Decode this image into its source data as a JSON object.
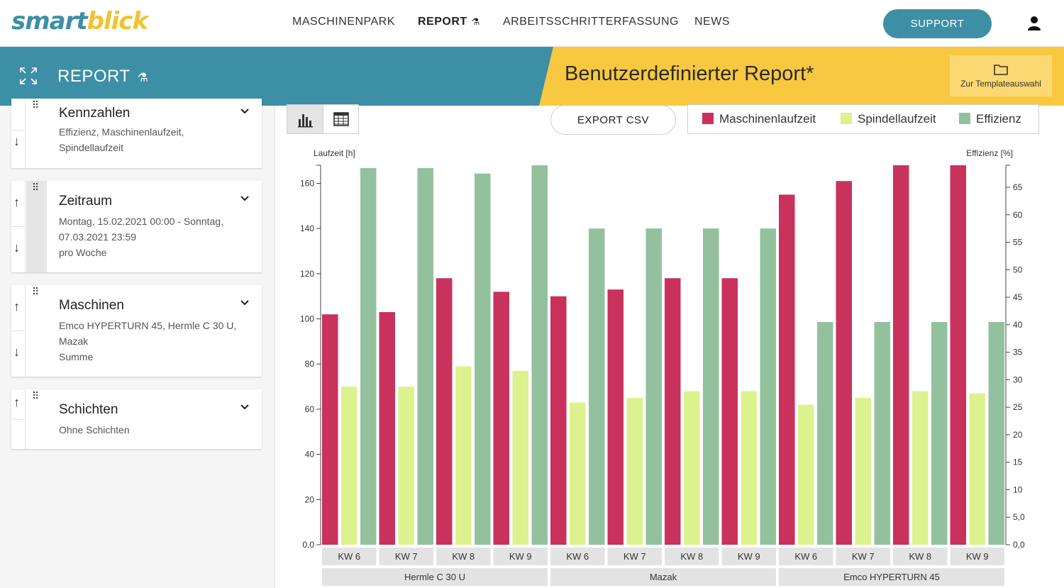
{
  "nav": {
    "logo_part1": "smart",
    "logo_part2": "blick",
    "items": [
      "MASCHINENPARK",
      "REPORT",
      "ARBEITSSCHRITTERFASSUNG",
      "NEWS"
    ],
    "support_label": "SUPPORT"
  },
  "header": {
    "section_title": "REPORT",
    "report_title": "Benutzerdefinierter Report*",
    "template_button_label": "Zur Templateauswahl"
  },
  "sidebar": {
    "cards": [
      {
        "title": "Kennzahlen",
        "desc": "Effizienz, Maschinenlaufzeit, Spindellaufzeit"
      },
      {
        "title": "Zeitraum",
        "desc": "Montag, 15.02.2021 00:00 - Sonntag, 07.03.2021 23:59",
        "desc2": "pro Woche"
      },
      {
        "title": "Maschinen",
        "desc": "Emco HYPERTURN 45, Hermle C 30 U, Mazak",
        "desc2": "Summe"
      },
      {
        "title": "Schichten",
        "desc": "Ohne Schichten"
      }
    ]
  },
  "toolbar": {
    "export_label": "EXPORT CSV"
  },
  "colors": {
    "accent_blue": "#3d8fa5",
    "accent_yellow": "#f7c840",
    "machine": "#c8325d",
    "spindle": "#dcf28f",
    "efficiency": "#93c19e"
  },
  "chart_data": {
    "type": "bar",
    "y_left_label": "Laufzeit [h]",
    "y_right_label": "Effizienz [%]",
    "y_left_ticks": [
      "0,0",
      "20",
      "40",
      "60",
      "80",
      "100",
      "120",
      "140",
      "160"
    ],
    "y_right_ticks": [
      "0,0",
      "5,0",
      "10",
      "15",
      "20",
      "25",
      "30",
      "35",
      "40",
      "45",
      "50",
      "55",
      "60",
      "65"
    ],
    "ylim_left": [
      0,
      168
    ],
    "ylim_right": [
      0,
      69
    ],
    "groups": [
      "Hermle C 30 U",
      "Mazak",
      "Emco HYPERTURN 45"
    ],
    "categories": [
      "KW 6",
      "KW 7",
      "KW 8",
      "KW 9",
      "KW 6",
      "KW 7",
      "KW 8",
      "KW 9",
      "KW 6",
      "KW 7",
      "KW 8",
      "KW 9"
    ],
    "series": [
      {
        "name": "Maschinenlaufzeit",
        "axis": "left",
        "values": [
          102,
          103,
          118,
          112,
          110,
          113,
          118,
          118,
          155,
          161,
          168,
          168
        ]
      },
      {
        "name": "Spindellaufzeit",
        "axis": "left",
        "values": [
          70,
          70,
          79,
          77,
          63,
          65,
          68,
          68,
          62,
          65,
          68,
          67
        ]
      },
      {
        "name": "Effizienz",
        "axis": "right",
        "values": [
          68.5,
          68.5,
          67.5,
          69,
          57.5,
          57.5,
          57.5,
          57.5,
          40.5,
          40.5,
          40.5,
          40.5
        ]
      }
    ]
  }
}
